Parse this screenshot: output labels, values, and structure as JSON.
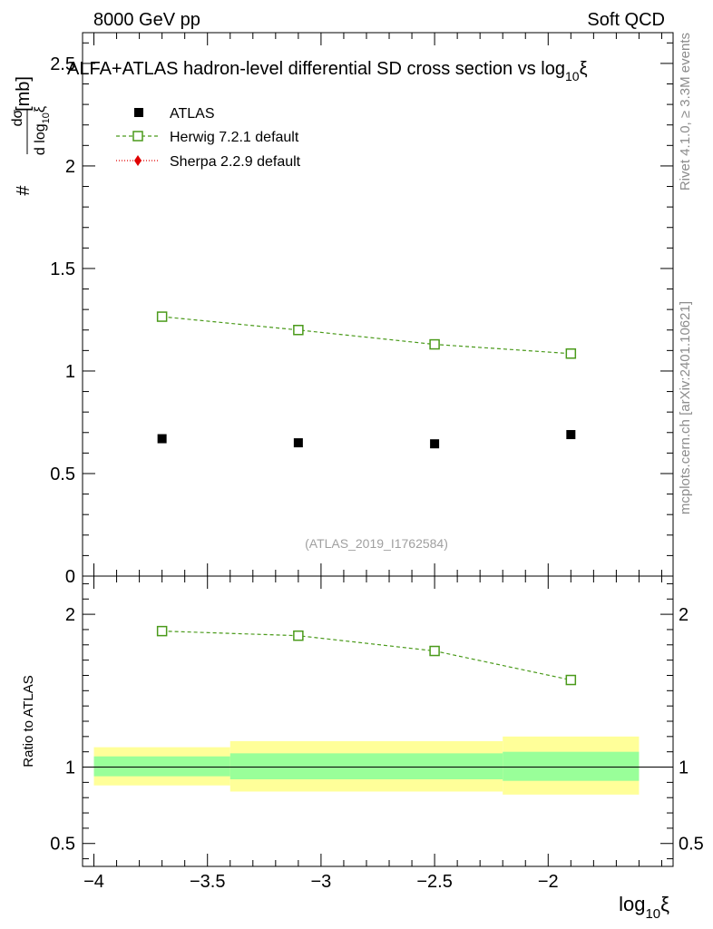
{
  "header": {
    "left": "8000 GeV pp",
    "right": "Soft QCD"
  },
  "side_labels": {
    "rivet": "Rivet 4.1.0, ≥ 3.3M events",
    "mcplots": "mcplots.cern.ch [arXiv:2401.10621]"
  },
  "chart_data": {
    "type": "scatter",
    "title": "ALFA+ATLAS hadron-level differential SD cross section vs log",
    "title_sub": "10",
    "title_tail": "ξ",
    "analysis_id": "(ATLAS_2019_I1762584)",
    "xlabel": "log",
    "xlabel_sub": "10",
    "xlabel_tail": "ξ",
    "ylabel_parts": {
      "hash": "#",
      "numerator": "dσ",
      "denominator": "d log",
      "denominator_sub": "10",
      "denominator_tail": "ξ",
      "unit": "[mb]"
    },
    "ratio_ylabel": "Ratio to ATLAS",
    "xlim": [
      -4.05,
      -1.45
    ],
    "ylim": [
      0,
      2.65
    ],
    "ratio_ylim": [
      0.35,
      2.25
    ],
    "x_ticks": [
      {
        "value": -4,
        "label": "−4"
      },
      {
        "value": -3.5,
        "label": "−3.5"
      },
      {
        "value": -3,
        "label": "−3"
      },
      {
        "value": -2.5,
        "label": "−2.5"
      },
      {
        "value": -2,
        "label": "−2"
      }
    ],
    "y_ticks": [
      {
        "value": 0,
        "label": "0"
      },
      {
        "value": 0.5,
        "label": "0.5"
      },
      {
        "value": 1,
        "label": "1"
      },
      {
        "value": 1.5,
        "label": "1.5"
      },
      {
        "value": 2,
        "label": "2"
      },
      {
        "value": 2.5,
        "label": "2.5"
      }
    ],
    "ratio_ticks": [
      {
        "value": 0.5,
        "label": "0.5"
      },
      {
        "value": 1,
        "label": "1"
      },
      {
        "value": 2,
        "label": "2"
      }
    ],
    "series": [
      {
        "name": "ATLAS",
        "marker": "filled-square",
        "color": "#000000",
        "x": [
          -3.7,
          -3.1,
          -2.5,
          -1.9
        ],
        "y": [
          0.67,
          0.65,
          0.645,
          0.69
        ]
      },
      {
        "name": "Herwig 7.2.1 default",
        "marker": "open-square",
        "color": "#4a9a1a",
        "x": [
          -3.7,
          -3.1,
          -2.5,
          -1.9
        ],
        "y": [
          1.265,
          1.2,
          1.13,
          1.085
        ],
        "ratio": [
          1.89,
          1.86,
          1.76,
          1.57
        ]
      },
      {
        "name": "Sherpa 2.2.9 default",
        "marker": "filled-diamond",
        "color": "#e00000",
        "x": [],
        "y": []
      }
    ],
    "bands": [
      {
        "x0": -4.0,
        "x1": -3.4,
        "stat_lo": 0.94,
        "stat_hi": 1.07,
        "tot_lo": 0.88,
        "tot_hi": 1.13
      },
      {
        "x0": -3.4,
        "x1": -2.2,
        "stat_lo": 0.92,
        "stat_hi": 1.09,
        "tot_lo": 0.84,
        "tot_hi": 1.17
      },
      {
        "x0": -2.2,
        "x1": -1.6,
        "stat_lo": 0.91,
        "stat_hi": 1.1,
        "tot_lo": 0.82,
        "tot_hi": 1.2
      }
    ],
    "colors": {
      "stat_band": "#99ff99",
      "total_band": "#ffff99",
      "analysis_id": "#a0a0a0",
      "side_text": "#8c8c8c"
    }
  }
}
